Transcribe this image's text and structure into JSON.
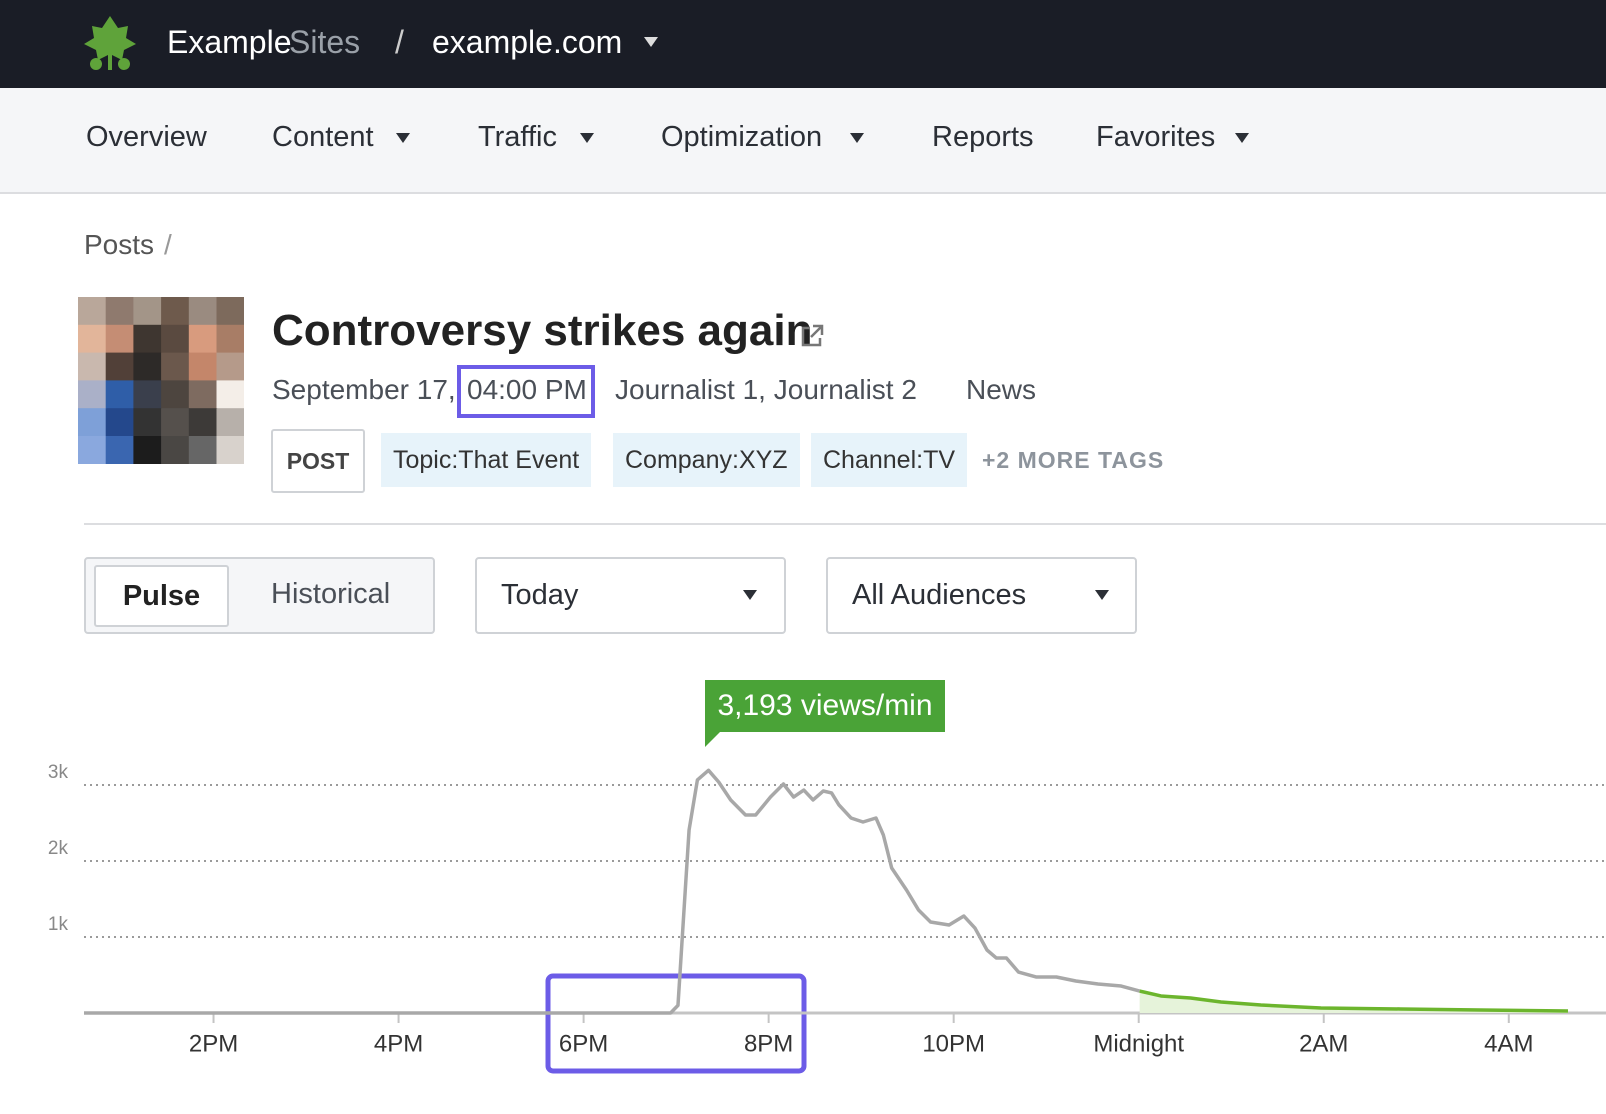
{
  "header": {
    "brand": "Example",
    "brand_suffix": "Sites",
    "separator": "/",
    "site": "example.com"
  },
  "nav": [
    "Overview",
    "Content",
    "Traffic",
    "Optimization",
    "Reports",
    "Favorites"
  ],
  "breadcrumb": {
    "item": "Posts",
    "separator": "/"
  },
  "post": {
    "title": "Controversy strikes again",
    "date": "September 17,",
    "time": "04:00 PM",
    "authors": "Journalist 1, Journalist 2",
    "section": "News",
    "type": "POST",
    "tags": [
      "Topic:That Event",
      "Company:XYZ",
      "Channel:TV"
    ],
    "more_tags": "+2 MORE TAGS"
  },
  "controls": {
    "modes": [
      "Pulse",
      "Historical"
    ],
    "period": "Today",
    "audience": "All Audiences"
  },
  "chart_data": {
    "type": "line",
    "annotation": "3,193 views/min",
    "x": [
      12.6,
      18.94,
      19.02,
      19.14,
      19.23,
      19.35,
      19.46,
      19.59,
      19.75,
      19.86,
      20.02,
      20.16,
      20.27,
      20.38,
      20.48,
      20.59,
      20.68,
      20.76,
      20.89,
      21.02,
      21.16,
      21.24,
      21.33,
      21.49,
      21.62,
      21.75,
      21.95,
      22.11,
      22.23,
      22.36,
      22.46,
      22.57,
      22.7,
      22.89,
      23.11,
      23.32,
      23.56,
      23.81,
      24.01,
      24.24,
      24.56,
      24.89,
      25.32,
      25.97,
      26.83,
      27.69,
      28.64
    ],
    "series": [
      {
        "color": "#a8a8a8",
        "values": [
          0,
          0,
          100,
          2408,
          3066,
          3193,
          3039,
          2803,
          2605,
          2605,
          2842,
          3013,
          2842,
          2934,
          2803,
          2921,
          2895,
          2737,
          2566,
          2513,
          2566,
          2342,
          1908,
          1618,
          1355,
          1197,
          1158,
          1276,
          1118,
          829,
          724,
          724,
          539,
          474,
          474,
          421,
          382,
          355,
          289,
          null,
          null,
          null,
          null,
          null,
          null,
          null,
          null
        ]
      },
      {
        "color": "#6cb52d",
        "fill": "#e6f3da",
        "values": [
          null,
          null,
          null,
          null,
          null,
          null,
          null,
          null,
          null,
          null,
          null,
          null,
          null,
          null,
          null,
          null,
          null,
          null,
          null,
          null,
          null,
          null,
          null,
          null,
          null,
          null,
          null,
          null,
          null,
          null,
          null,
          null,
          null,
          null,
          null,
          null,
          null,
          null,
          289,
          224,
          197,
          145,
          105,
          66,
          53,
          39,
          26
        ]
      }
    ],
    "xlim": [
      12.6,
      28.64
    ],
    "xticks": [
      {
        "value": 14,
        "label": "2PM"
      },
      {
        "value": 16,
        "label": "4PM"
      },
      {
        "value": 18,
        "label": "6PM"
      },
      {
        "value": 20,
        "label": "8PM"
      },
      {
        "value": 22,
        "label": "10PM"
      },
      {
        "value": 24,
        "label": "Midnight"
      },
      {
        "value": 26,
        "label": "2AM"
      },
      {
        "value": 28,
        "label": "4AM"
      }
    ],
    "ylim": [
      0,
      3500
    ],
    "yticks": [
      {
        "value": 1000,
        "label": "1k"
      },
      {
        "value": 2000,
        "label": "2k"
      },
      {
        "value": 3000,
        "label": "3k"
      }
    ],
    "grid": true
  }
}
